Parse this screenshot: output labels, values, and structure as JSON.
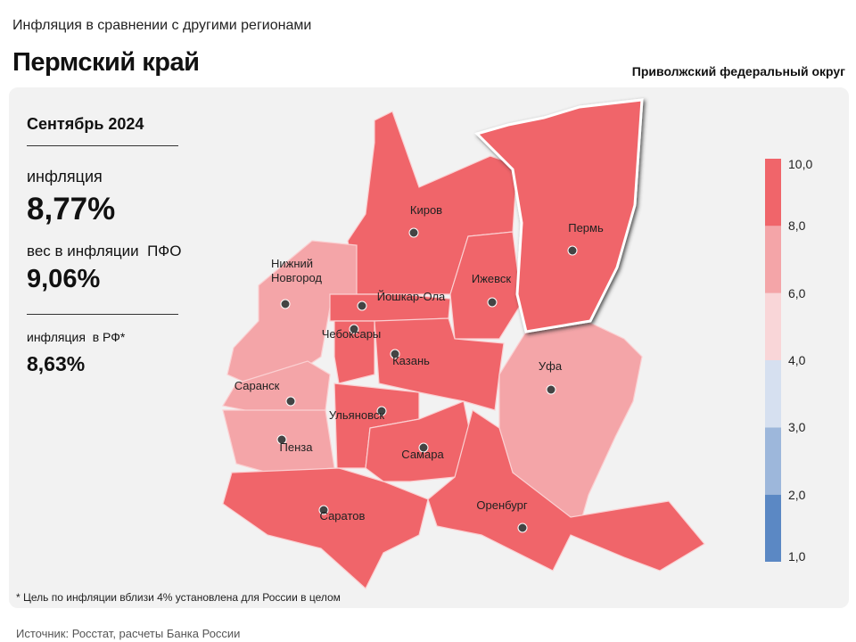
{
  "header": {
    "subtitle": "Инфляция в сравнении с другими регионами",
    "title": "Пермский край",
    "district": "Приволжский федеральный округ"
  },
  "panel": {
    "period": "Сентябрь 2024",
    "inflation_label": "инфляция",
    "inflation_value": "8,77%",
    "weight_label": "вес в инфляции  ПФО",
    "weight_value": "9,06%",
    "rf_label": "инфляция  в РФ*",
    "rf_value": "8,63%"
  },
  "regions": [
    {
      "label": "Киров",
      "color": "#f0656a"
    },
    {
      "label": "Пермь",
      "color": "#f0656a"
    },
    {
      "label": "Ижевск",
      "color": "#f0656a"
    },
    {
      "label": "Нижний Новгород",
      "color": "#f4a5a8"
    },
    {
      "label": "Йошкар-Ола",
      "color": "#f0656a"
    },
    {
      "label": "Чебоксары",
      "color": "#f0656a"
    },
    {
      "label": "Казань",
      "color": "#f0656a"
    },
    {
      "label": "Саранск",
      "color": "#f4a5a8"
    },
    {
      "label": "Пенза",
      "color": "#f4a5a8"
    },
    {
      "label": "Ульяновск",
      "color": "#f0656a"
    },
    {
      "label": "Самара",
      "color": "#f0656a"
    },
    {
      "label": "Уфа",
      "color": "#f4a5a8"
    },
    {
      "label": "Саратов",
      "color": "#f0656a"
    },
    {
      "label": "Оренбург",
      "color": "#f0656a"
    }
  ],
  "legend": {
    "ticks": [
      {
        "value": 1,
        "label": "1,0"
      },
      {
        "value": 2,
        "label": "2,0"
      },
      {
        "value": 3,
        "label": "3,0"
      },
      {
        "value": 4,
        "label": "4,0"
      },
      {
        "value": 6,
        "label": "6,0"
      },
      {
        "value": 8,
        "label": "8,0"
      },
      {
        "value": 10,
        "label": "10,0"
      }
    ],
    "colors": [
      "#5b88c4",
      "#9db7db",
      "#d6e0f0",
      "#f9d6d8",
      "#f4a5a8",
      "#f0656a"
    ]
  },
  "footnote": "* Цель по инфляции вблизи 4% установлена для России в целом",
  "source": "Источник: Росстат, расчеты Банка России"
}
